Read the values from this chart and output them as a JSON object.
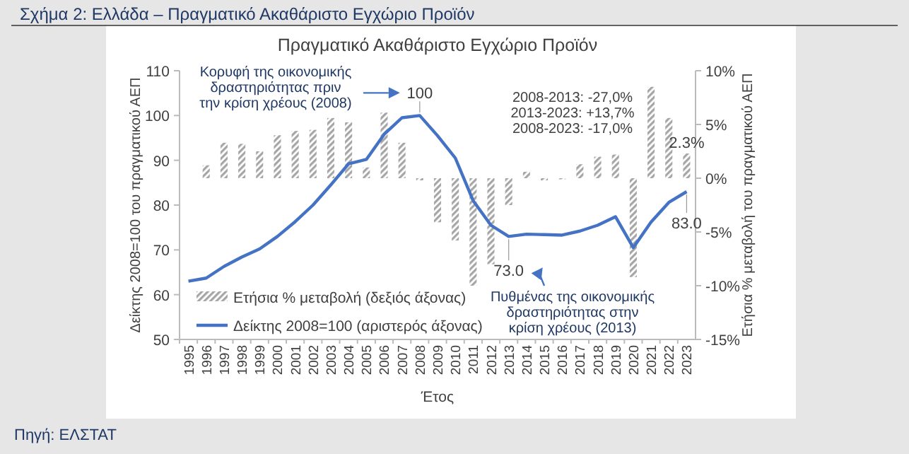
{
  "chart_data": {
    "type": "bar",
    "title": "Σχήμα 2: Ελλάδα – Πραγματικό Ακαθάριστο Εγχώριο Προϊόν",
    "subtitle": "Πραγματικό Ακαθάριστο Εγχώριο Προϊόν",
    "xlabel": "Έτος",
    "ylabel": "Δείκτης 2008=100 του πραγματικού ΑΕΠ",
    "y2label": "Ετήσια % μεταβολή του πραγματικού ΑΕΠ",
    "categories": [
      "1995",
      "1996",
      "1997",
      "1998",
      "1999",
      "2000",
      "2001",
      "2002",
      "2003",
      "2004",
      "2005",
      "2006",
      "2007",
      "2008",
      "2009",
      "2010",
      "2011",
      "2012",
      "2013",
      "2014",
      "2015",
      "2016",
      "2017",
      "2018",
      "2019",
      "2020",
      "2021",
      "2022",
      "2023"
    ],
    "series": [
      {
        "name": "Ετήσια % μεταβολή (δεξιός άξονας)",
        "axis": "y2",
        "color": "#a6a6a6",
        "values": [
          null,
          1.2,
          3.3,
          3.2,
          2.5,
          4.0,
          4.4,
          4.5,
          5.6,
          5.2,
          1.0,
          6.1,
          3.3,
          -0.2,
          -4.1,
          -5.8,
          -10.0,
          -8.0,
          -2.5,
          0.6,
          -0.2,
          -0.1,
          1.3,
          2.0,
          2.2,
          -9.2,
          8.5,
          5.6,
          2.3
        ],
        "value_labels": [
          null,
          null,
          null,
          null,
          null,
          null,
          null,
          null,
          null,
          null,
          null,
          null,
          null,
          null,
          null,
          null,
          null,
          null,
          null,
          null,
          null,
          null,
          null,
          null,
          null,
          null,
          null,
          null,
          "2.3%"
        ]
      },
      {
        "name": "Δείκτης 2008=100 (αριστερός άξονας)",
        "type": "line",
        "color": "#4472c4",
        "values": [
          63.0,
          63.7,
          66.3,
          68.4,
          70.2,
          73.0,
          76.3,
          80.0,
          84.5,
          89.2,
          90.2,
          95.8,
          99.5,
          100,
          95.5,
          90.5,
          81.0,
          75.5,
          73.0,
          73.5,
          73.4,
          73.3,
          74.2,
          75.5,
          77.4,
          70.5,
          76.2,
          80.6,
          83.0
        ],
        "value_labels": [
          null,
          null,
          null,
          null,
          null,
          null,
          null,
          null,
          null,
          null,
          null,
          null,
          null,
          "100",
          null,
          null,
          null,
          null,
          "73.0",
          null,
          null,
          null,
          null,
          null,
          null,
          null,
          null,
          null,
          "83.0"
        ]
      }
    ],
    "ylim": [
      50,
      110
    ],
    "yticks": [
      50,
      60,
      70,
      80,
      90,
      100,
      110
    ],
    "y2lim": [
      -15,
      10
    ],
    "y2ticks": [
      {
        "value": -15,
        "label": "-15%"
      },
      {
        "value": -10,
        "label": "-10%"
      },
      {
        "value": -5,
        "label": "-5%"
      },
      {
        "value": 0,
        "label": "0%"
      },
      {
        "value": 5,
        "label": "5%"
      },
      {
        "value": 10,
        "label": "10%"
      }
    ],
    "legend": "bottom left",
    "annotations": [
      "Κορυφή της οικονομικής\nδραστηριότητας πριν\nτην κρίση χρέους (2008)",
      "Πυθμένας της οικονομικής\nδραστηριότητας στην\nκρίση χρέους (2013)",
      "2008-2013: -27,0%\n2013-2023: +13,7%\n2008-2023: -17,0%",
      "Πηγή: ΕΛΣΤΑΤ"
    ]
  }
}
